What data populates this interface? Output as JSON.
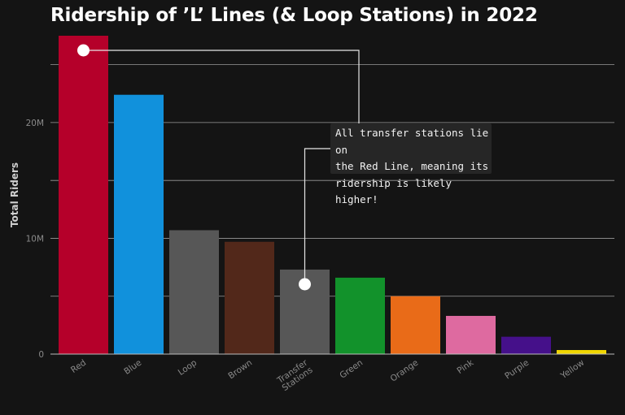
{
  "chart_data": {
    "type": "bar",
    "title": "Ridership of ’L’ Lines (& Loop Stations) in 2022",
    "ylabel": "Total Riders",
    "xlabel": "",
    "ylim": [
      0,
      27500000
    ],
    "yticks": [
      0,
      10000000,
      20000000
    ],
    "ytick_labels": [
      "0",
      "10M",
      "20M"
    ],
    "gridlines": [
      0,
      5000000,
      10000000,
      15000000,
      20000000,
      25000000
    ],
    "categories": [
      "Red",
      "Blue",
      "Loop",
      "Brown",
      "Transfer Stations",
      "Green",
      "Orange",
      "Pink",
      "Purple",
      "Yellow"
    ],
    "values": [
      27500000,
      22400000,
      10700000,
      9700000,
      7300000,
      6600000,
      5000000,
      3300000,
      1500000,
      350000
    ],
    "colors": [
      "#b5002a",
      "#1191dc",
      "#575757",
      "#52281a",
      "#575757",
      "#12922b",
      "#e96b18",
      "#de6aa0",
      "#45108a",
      "#f0d600"
    ],
    "grid": true,
    "annotation": {
      "text": "All transfer stations lie on the Red Line, meaning its ridership is likely higher!",
      "lines": [
        "All transfer stations lie on",
        "the Red Line, meaning its",
        "ridership is likely higher!"
      ],
      "points_to": [
        "Red",
        "Transfer Stations"
      ]
    }
  }
}
